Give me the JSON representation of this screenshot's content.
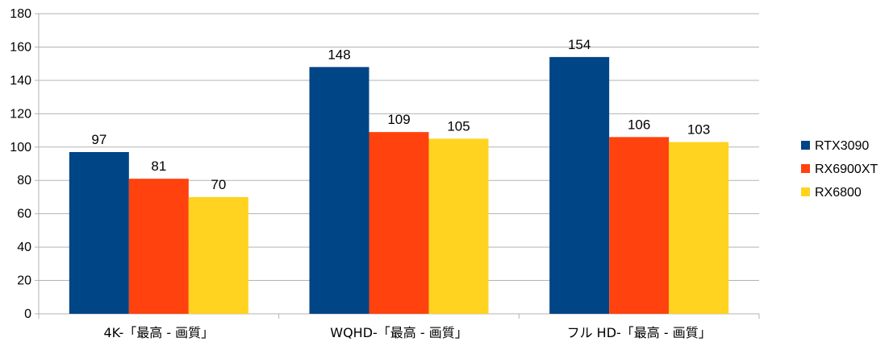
{
  "chart_data": {
    "type": "bar",
    "categories": [
      "4K-「最高 - 画質」",
      "WQHD-「最高 - 画質」",
      "フル HD-「最高 - 画質」"
    ],
    "series": [
      {
        "name": "RTX3090",
        "values": [
          97,
          148,
          154
        ],
        "color": "#004586"
      },
      {
        "name": "RX6900XT",
        "values": [
          81,
          109,
          106
        ],
        "color": "#ff420e"
      },
      {
        "name": "RX6800",
        "values": [
          70,
          105,
          103
        ],
        "color": "#ffd320"
      }
    ],
    "ylim": [
      0,
      180
    ],
    "yticks": [
      0,
      20,
      40,
      60,
      80,
      100,
      120,
      140,
      160,
      180
    ],
    "grid": true,
    "legend": "right",
    "title": "",
    "xlabel": "",
    "ylabel": ""
  }
}
